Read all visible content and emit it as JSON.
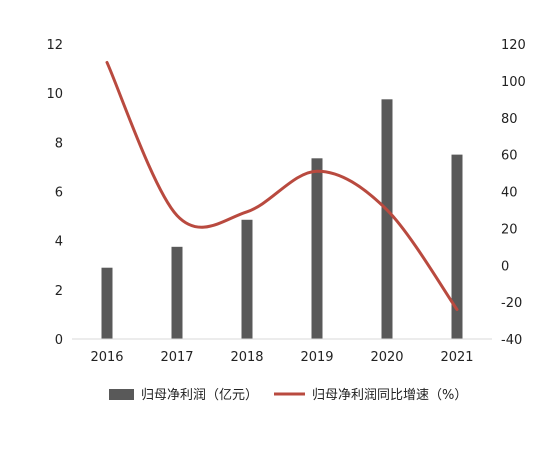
{
  "chart_data": {
    "type": "bar+line",
    "categories": [
      "2016",
      "2017",
      "2018",
      "2019",
      "2020",
      "2021"
    ],
    "series": [
      {
        "name": "归母净利润（亿元）",
        "type": "bar",
        "axis": "left",
        "values": [
          2.9,
          3.75,
          4.85,
          7.35,
          9.75,
          7.5
        ],
        "color": "#595959"
      },
      {
        "name": "归母净利润同比增速（%）",
        "type": "line",
        "axis": "right",
        "smooth": true,
        "values": [
          110,
          27,
          29,
          51,
          30,
          -24
        ],
        "color": "#b94a3f"
      }
    ],
    "y_left": {
      "lim": [
        0,
        12
      ],
      "ticks": [
        "0",
        "2",
        "4",
        "6",
        "8",
        "10",
        "12"
      ]
    },
    "y_right": {
      "lim": [
        -40,
        120
      ],
      "ticks": [
        "-40",
        "-20",
        "0",
        "20",
        "40",
        "60",
        "80",
        "100",
        "120"
      ]
    },
    "grid": false,
    "legend": {
      "position": "bottom",
      "entries": [
        "归母净利润（亿元）",
        "归母净利润同比增速（%）"
      ]
    }
  }
}
